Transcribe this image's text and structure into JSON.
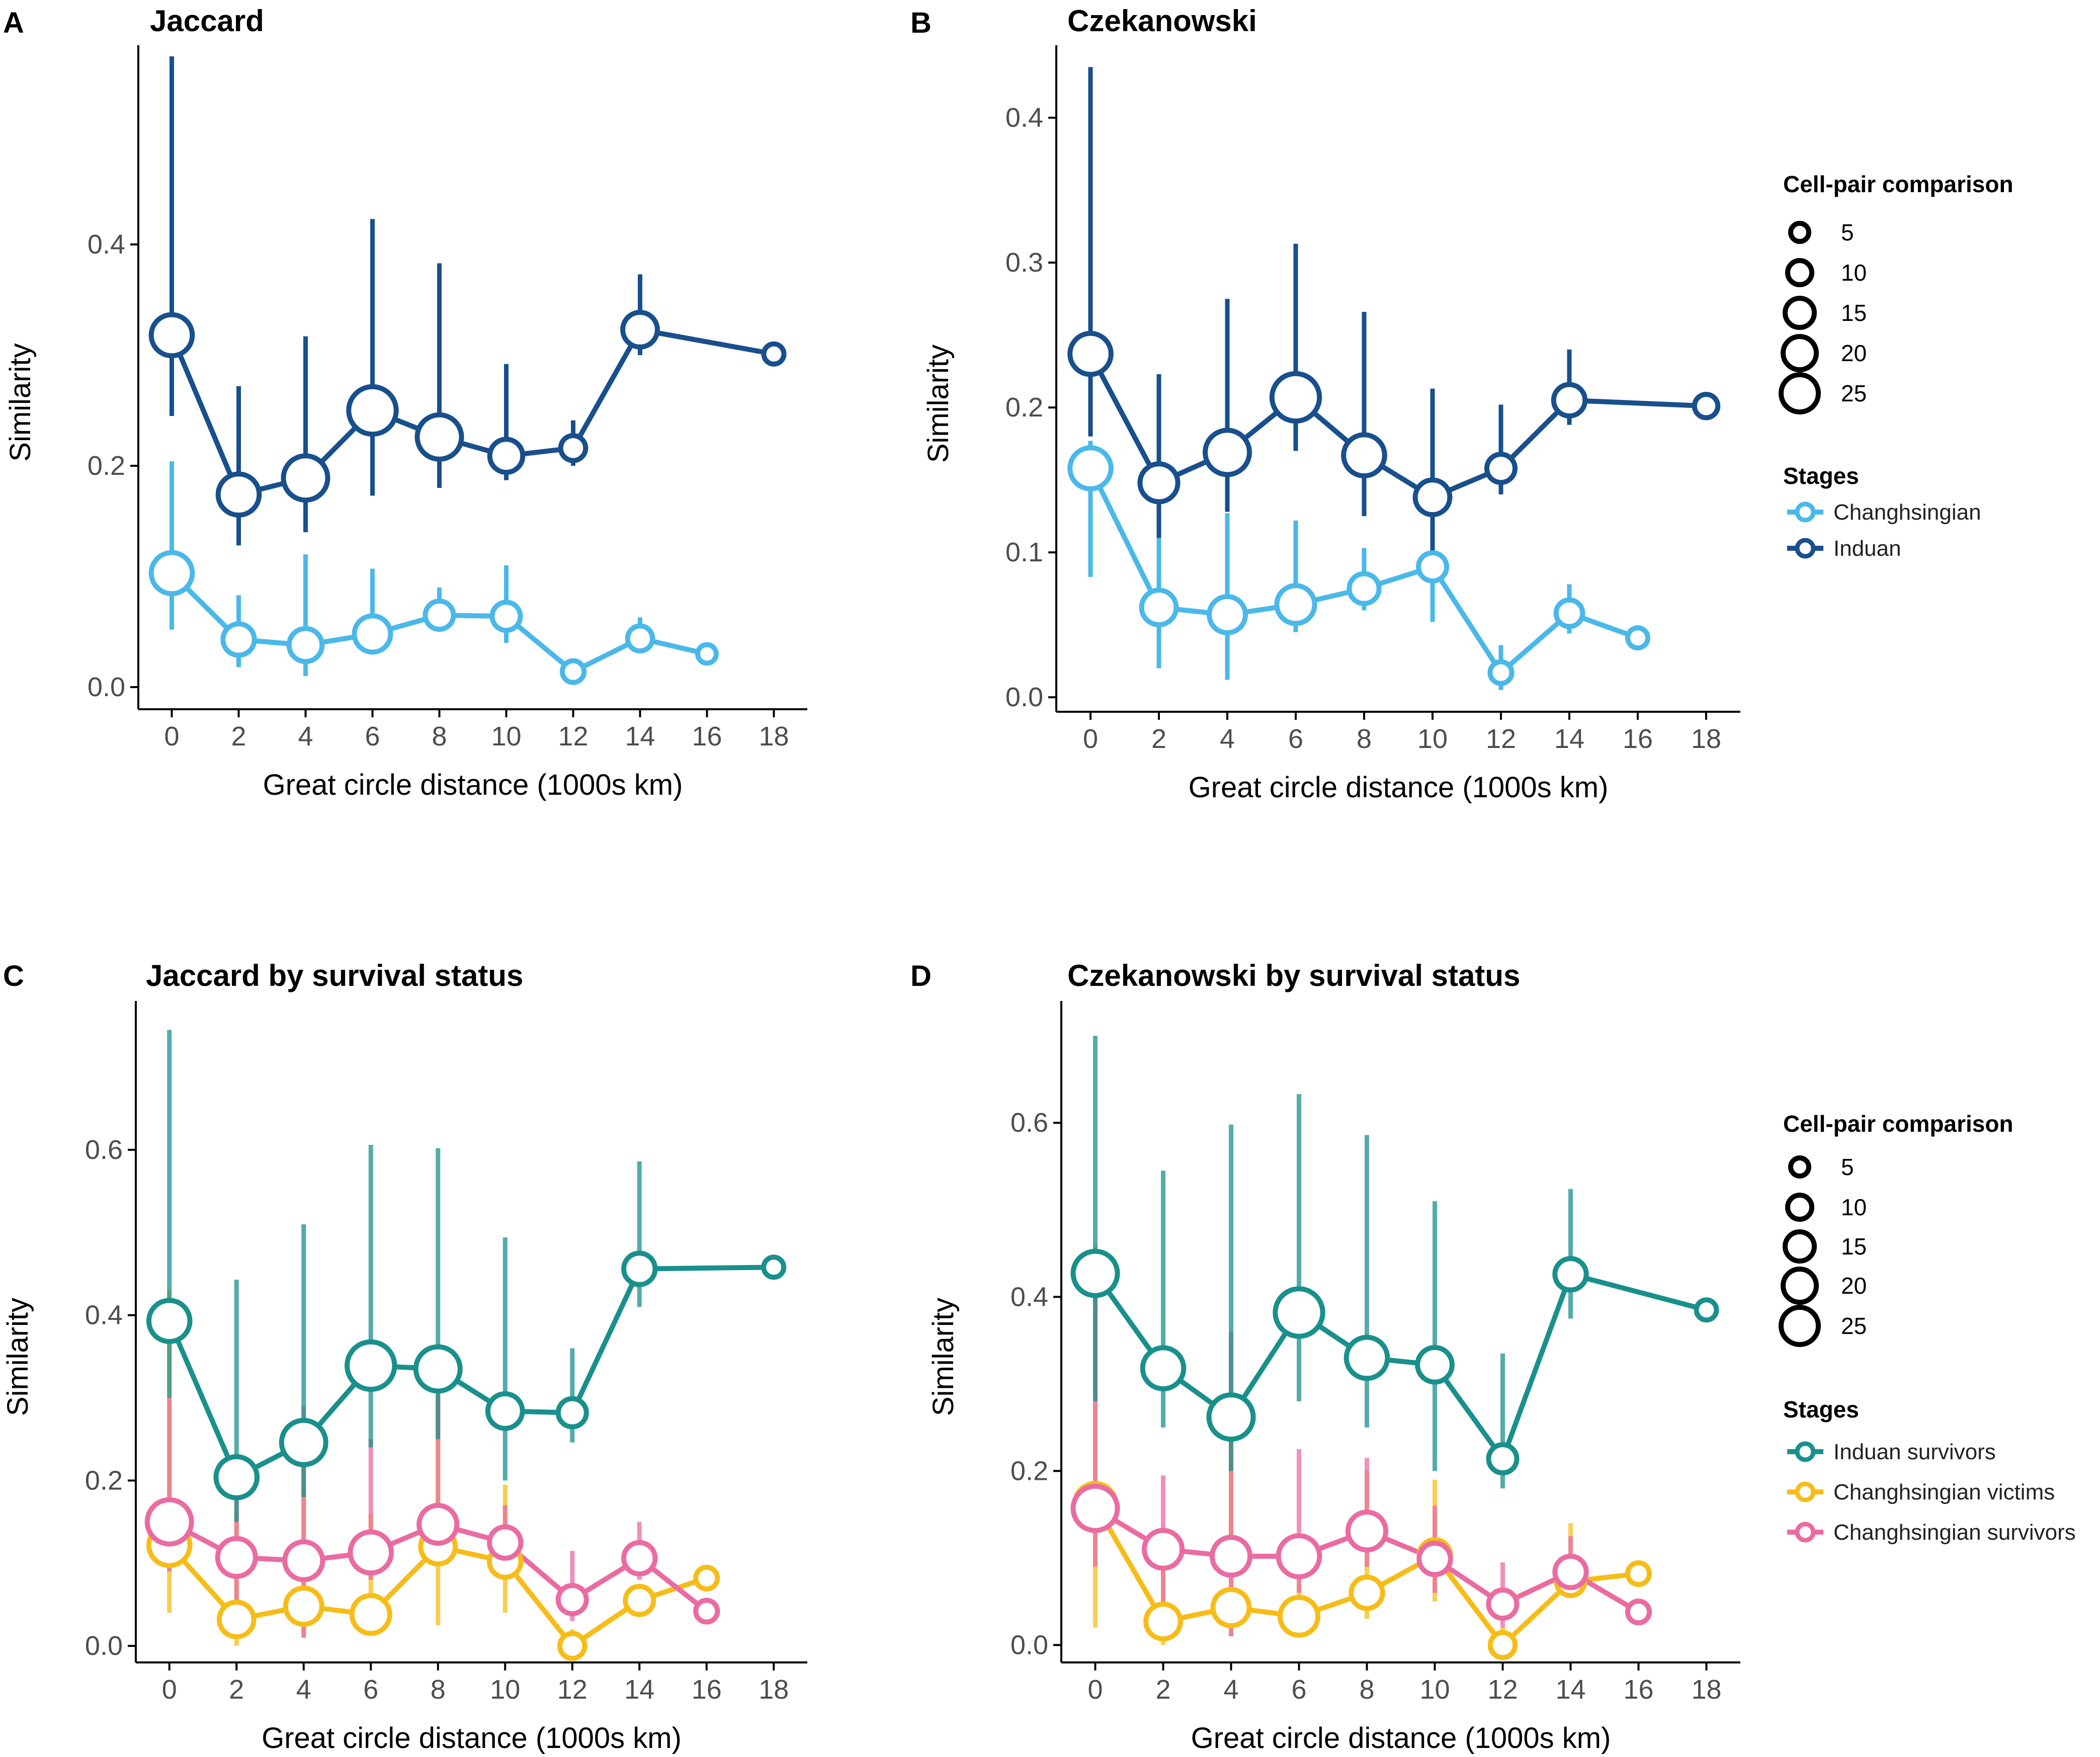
{
  "colors": {
    "changhsingian": "#4ab8e8",
    "induan": "#184f8c",
    "induan_survivors": "#19908c",
    "changhsingian_victims": "#f6bd19",
    "changhsingian_survivors": "#ea6ba2",
    "axis": "#000000",
    "tick_text": "#4d4d4d"
  },
  "size_legend": {
    "title": "Cell-pair comparison",
    "values": [
      "5",
      "10",
      "15",
      "20",
      "25"
    ]
  },
  "stage_legend_top": {
    "title": "Stages",
    "items": [
      "Changhsingian",
      "Induan"
    ]
  },
  "stage_legend_bottom": {
    "title": "Stages",
    "items": [
      "Induan survivors",
      "Changhsingian victims",
      "Changhsingian survivors"
    ]
  },
  "chart_data": [
    {
      "panel": "A",
      "type": "line",
      "title": "Jaccard",
      "xlabel": "Great circle distance (1000s km)",
      "ylabel": "Similarity",
      "xlim": [
        -1,
        19
      ],
      "ylim": [
        -0.02,
        0.58
      ],
      "xticks": [
        "0",
        "2",
        "4",
        "6",
        "8",
        "10",
        "12",
        "14",
        "16",
        "18"
      ],
      "yticks": [
        "0.0",
        "0.2",
        "0.4"
      ],
      "series": [
        {
          "name": "Changhsingian",
          "color_key": "changhsingian",
          "x": [
            0,
            2,
            4,
            6,
            8,
            10,
            12,
            14,
            16
          ],
          "y": [
            0.103,
            0.043,
            0.038,
            0.048,
            0.065,
            0.064,
            0.014,
            0.044,
            0.03
          ],
          "n": [
            18,
            12,
            13,
            15,
            10,
            10,
            6,
            8,
            4
          ],
          "err_low": [
            0.052,
            0.018,
            0.01,
            0.03,
            0.05,
            0.04,
            0.004,
            0.035,
            0.028
          ],
          "err_high": [
            0.204,
            0.083,
            0.12,
            0.107,
            0.09,
            0.11,
            0.023,
            0.063,
            0.032
          ]
        },
        {
          "name": "Induan",
          "color_key": "induan",
          "x": [
            0,
            2,
            4,
            6,
            8,
            10,
            12,
            14,
            18
          ],
          "y": [
            0.318,
            0.174,
            0.189,
            0.25,
            0.226,
            0.209,
            0.216,
            0.323,
            0.301
          ],
          "n": [
            18,
            18,
            20,
            22,
            20,
            13,
            8,
            14,
            5
          ],
          "err_low": [
            0.245,
            0.128,
            0.14,
            0.173,
            0.18,
            0.187,
            0.2,
            0.3,
            0.3
          ],
          "err_high": [
            0.57,
            0.272,
            0.317,
            0.423,
            0.383,
            0.292,
            0.241,
            0.373,
            0.303
          ]
        }
      ]
    },
    {
      "panel": "B",
      "type": "line",
      "title": "Czekanowski",
      "xlabel": "Great circle distance (1000s km)",
      "ylabel": "Similarity",
      "xlim": [
        -1,
        19
      ],
      "ylim": [
        -0.01,
        0.45
      ],
      "xticks": [
        "0",
        "2",
        "4",
        "6",
        "8",
        "10",
        "12",
        "14",
        "16",
        "18"
      ],
      "yticks": [
        "0.0",
        "0.1",
        "0.2",
        "0.3",
        "0.4"
      ],
      "series": [
        {
          "name": "Changhsingian",
          "color_key": "changhsingian",
          "x": [
            0,
            2,
            4,
            6,
            8,
            10,
            12,
            14,
            16
          ],
          "y": [
            0.158,
            0.062,
            0.057,
            0.064,
            0.075,
            0.09,
            0.017,
            0.058,
            0.041
          ],
          "n": [
            18,
            14,
            15,
            16,
            11,
            10,
            6,
            9,
            5
          ],
          "err_low": [
            0.083,
            0.02,
            0.012,
            0.045,
            0.06,
            0.052,
            0.005,
            0.044,
            0.038
          ],
          "err_high": [
            0.177,
            0.113,
            0.127,
            0.122,
            0.103,
            0.098,
            0.036,
            0.078,
            0.045
          ]
        },
        {
          "name": "Induan",
          "color_key": "induan",
          "x": [
            0,
            2,
            4,
            6,
            8,
            10,
            12,
            14,
            18
          ],
          "y": [
            0.237,
            0.148,
            0.169,
            0.207,
            0.167,
            0.138,
            0.158,
            0.205,
            0.201
          ],
          "n": [
            18,
            16,
            20,
            22,
            18,
            14,
            10,
            12,
            7
          ],
          "err_low": [
            0.18,
            0.11,
            0.128,
            0.17,
            0.125,
            0.1,
            0.14,
            0.188,
            0.2
          ],
          "err_high": [
            0.435,
            0.223,
            0.275,
            0.313,
            0.266,
            0.213,
            0.202,
            0.24,
            0.203
          ]
        }
      ]
    },
    {
      "panel": "C",
      "type": "line",
      "title": "Jaccard by survival status",
      "xlabel": "Great circle distance (1000s km)",
      "ylabel": "Similarity",
      "xlim": [
        -1,
        19
      ],
      "ylim": [
        -0.02,
        0.78
      ],
      "xticks": [
        "0",
        "2",
        "4",
        "6",
        "8",
        "10",
        "12",
        "14",
        "16",
        "18"
      ],
      "yticks": [
        "0.0",
        "0.2",
        "0.4",
        "0.6"
      ],
      "series": [
        {
          "name": "Changhsingian victims",
          "color_key": "changhsingian_victims",
          "x": [
            0,
            2,
            4,
            6,
            8,
            10,
            12,
            14,
            16
          ],
          "y": [
            0.122,
            0.032,
            0.048,
            0.038,
            0.12,
            0.102,
            0.0,
            0.055,
            0.082
          ],
          "n": [
            18,
            14,
            15,
            16,
            14,
            12,
            8,
            10,
            6
          ],
          "err_low": [
            0.04,
            0.0,
            0.01,
            0.02,
            0.025,
            0.04,
            0.0,
            0.05,
            0.08
          ],
          "err_high": [
            0.43,
            0.16,
            0.24,
            0.16,
            0.32,
            0.195,
            0.02,
            0.062,
            0.085
          ]
        },
        {
          "name": "Changhsingian survivors",
          "color_key": "changhsingian_survivors",
          "x": [
            0,
            2,
            4,
            6,
            8,
            10,
            12,
            14,
            16
          ],
          "y": [
            0.15,
            0.107,
            0.103,
            0.113,
            0.147,
            0.125,
            0.056,
            0.106,
            0.042
          ],
          "n": [
            20,
            16,
            16,
            18,
            16,
            12,
            10,
            12,
            6
          ],
          "err_low": [
            0.09,
            0.02,
            0.01,
            0.08,
            0.1,
            0.09,
            0.03,
            0.08,
            0.04
          ],
          "err_high": [
            0.3,
            0.21,
            0.29,
            0.25,
            0.33,
            0.17,
            0.115,
            0.15,
            0.045
          ]
        },
        {
          "name": "Induan survivors",
          "color_key": "induan_survivors",
          "x": [
            0,
            2,
            4,
            6,
            8,
            10,
            12,
            14,
            18
          ],
          "y": [
            0.393,
            0.204,
            0.246,
            0.339,
            0.335,
            0.284,
            0.282,
            0.456,
            0.458
          ],
          "n": [
            18,
            18,
            20,
            22,
            20,
            14,
            10,
            12,
            5
          ],
          "err_low": [
            0.3,
            0.15,
            0.18,
            0.24,
            0.25,
            0.2,
            0.246,
            0.41,
            0.455
          ],
          "err_high": [
            0.745,
            0.443,
            0.51,
            0.606,
            0.602,
            0.494,
            0.36,
            0.586,
            0.461
          ]
        }
      ]
    },
    {
      "panel": "D",
      "type": "line",
      "title": "Czekanowski by survival status",
      "xlabel": "Great circle distance (1000s km)",
      "ylabel": "Similarity",
      "xlim": [
        -1,
        19
      ],
      "ylim": [
        -0.02,
        0.74
      ],
      "xticks": [
        "0",
        "2",
        "4",
        "6",
        "8",
        "10",
        "12",
        "14",
        "16",
        "18"
      ],
      "yticks": [
        "0.0",
        "0.2",
        "0.4",
        "0.6"
      ],
      "series": [
        {
          "name": "Changhsingian victims",
          "color_key": "changhsingian_victims",
          "x": [
            0,
            2,
            4,
            6,
            8,
            10,
            12,
            14,
            16
          ],
          "y": [
            0.162,
            0.027,
            0.043,
            0.033,
            0.06,
            0.103,
            0.0,
            0.073,
            0.082
          ],
          "n": [
            18,
            14,
            15,
            16,
            12,
            12,
            8,
            10,
            6
          ],
          "err_low": [
            0.02,
            0.0,
            0.01,
            0.02,
            0.03,
            0.05,
            0.0,
            0.06,
            0.08
          ],
          "err_high": [
            0.46,
            0.1,
            0.24,
            0.12,
            0.2,
            0.19,
            0.02,
            0.14,
            0.085
          ]
        },
        {
          "name": "Changhsingian survivors",
          "color_key": "changhsingian_survivors",
          "x": [
            0,
            2,
            4,
            6,
            8,
            10,
            12,
            14,
            16
          ],
          "y": [
            0.157,
            0.11,
            0.102,
            0.102,
            0.131,
            0.099,
            0.047,
            0.084,
            0.038
          ],
          "n": [
            20,
            16,
            16,
            18,
            16,
            12,
            10,
            12,
            6
          ],
          "err_low": [
            0.09,
            0.03,
            0.01,
            0.06,
            0.09,
            0.06,
            0.02,
            0.06,
            0.035
          ],
          "err_high": [
            0.4,
            0.195,
            0.36,
            0.225,
            0.215,
            0.16,
            0.095,
            0.125,
            0.042
          ]
        },
        {
          "name": "Induan survivors",
          "color_key": "induan_survivors",
          "x": [
            0,
            2,
            4,
            6,
            8,
            10,
            12,
            14,
            18
          ],
          "y": [
            0.427,
            0.318,
            0.262,
            0.382,
            0.33,
            0.322,
            0.214,
            0.426,
            0.385
          ],
          "n": [
            20,
            18,
            20,
            22,
            18,
            14,
            10,
            12,
            5
          ],
          "err_low": [
            0.28,
            0.25,
            0.2,
            0.28,
            0.25,
            0.2,
            0.18,
            0.375,
            0.38
          ],
          "err_high": [
            0.7,
            0.545,
            0.598,
            0.633,
            0.586,
            0.51,
            0.335,
            0.524,
            0.39
          ]
        }
      ]
    }
  ]
}
